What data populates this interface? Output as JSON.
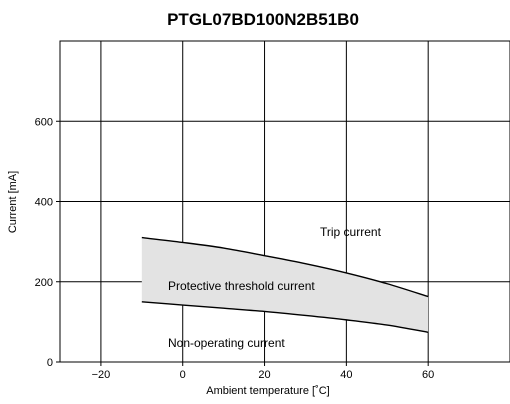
{
  "chart_data": {
    "type": "area",
    "title": "PTGL07BD100N2B51B0",
    "xlabel": "Ambient temperature [˚C]",
    "ylabel": "Current [mA]",
    "xlim": [
      -30,
      80
    ],
    "ylim": [
      0,
      800
    ],
    "xticks": [
      "−20",
      "0",
      "20",
      "40",
      "60"
    ],
    "xtick_values": [
      -20,
      0,
      20,
      40,
      60
    ],
    "yticks": [
      "0",
      "200",
      "400",
      "600"
    ],
    "ytick_values": [
      0,
      200,
      400,
      600
    ],
    "grid": true,
    "series": [
      {
        "name": "Trip current",
        "x": [
          -10,
          0,
          10,
          20,
          30,
          40,
          50,
          60
        ],
        "y": [
          310,
          298,
          284,
          265,
          245,
          222,
          195,
          163
        ]
      },
      {
        "name": "Non-operating current",
        "x": [
          -10,
          0,
          10,
          20,
          30,
          40,
          50,
          60
        ],
        "y": [
          150,
          142,
          134,
          126,
          116,
          105,
          92,
          74
        ]
      }
    ],
    "fill_between_label": "Protective threshold current",
    "fill_color": "#e3e3e3",
    "line_color": "#000000"
  }
}
